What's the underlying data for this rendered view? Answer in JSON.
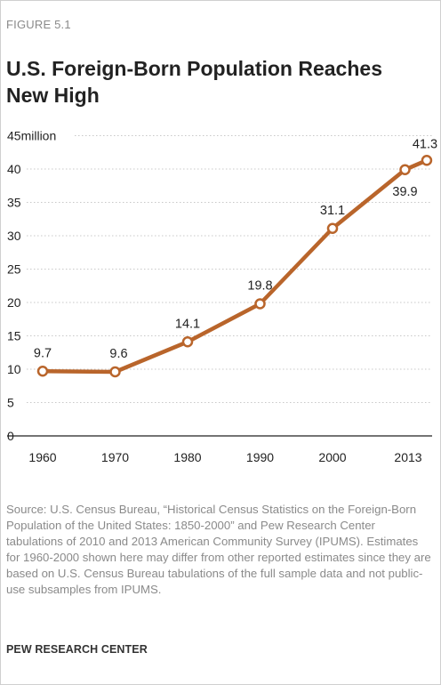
{
  "figure_label": "FIGURE 5.1",
  "title": "U.S. Foreign-Born Population Reaches New High",
  "source": "Source: U.S. Census Bureau, “Historical Census Statistics on the Foreign-Born Population of the United States: 1850-2000” and Pew Research Center tabulations of 2010 and 2013 American Community Survey (IPUMS). Estimates for 1960-2000 shown here may differ from other reported estimates since they are based on U.S. Census Bureau tabulations of the full sample data and not public-use subsamples from IPUMS.",
  "brand": "PEW RESEARCH CENTER",
  "colors": {
    "line": "#b9652b",
    "grid": "#c8c8c8",
    "axis": "#222222"
  },
  "chart_data": {
    "type": "line",
    "title": "",
    "xlabel": "",
    "ylabel": "",
    "y_unit_label": "45million",
    "ylim": [
      0,
      45
    ],
    "yticks": [
      0,
      5,
      10,
      15,
      20,
      25,
      30,
      35,
      40
    ],
    "grid": true,
    "x_tick_labels": [
      "1960",
      "1970",
      "1980",
      "1990",
      "2000",
      "2013"
    ],
    "series": [
      {
        "x": [
          1960,
          1970,
          1980,
          1990,
          2000,
          2010,
          2013
        ],
        "values": [
          9.7,
          9.6,
          14.1,
          19.8,
          31.1,
          39.9,
          41.3
        ],
        "labels": [
          "9.7",
          "9.6",
          "14.1",
          "19.8",
          "31.1",
          "39.9",
          "41.3"
        ]
      }
    ]
  }
}
